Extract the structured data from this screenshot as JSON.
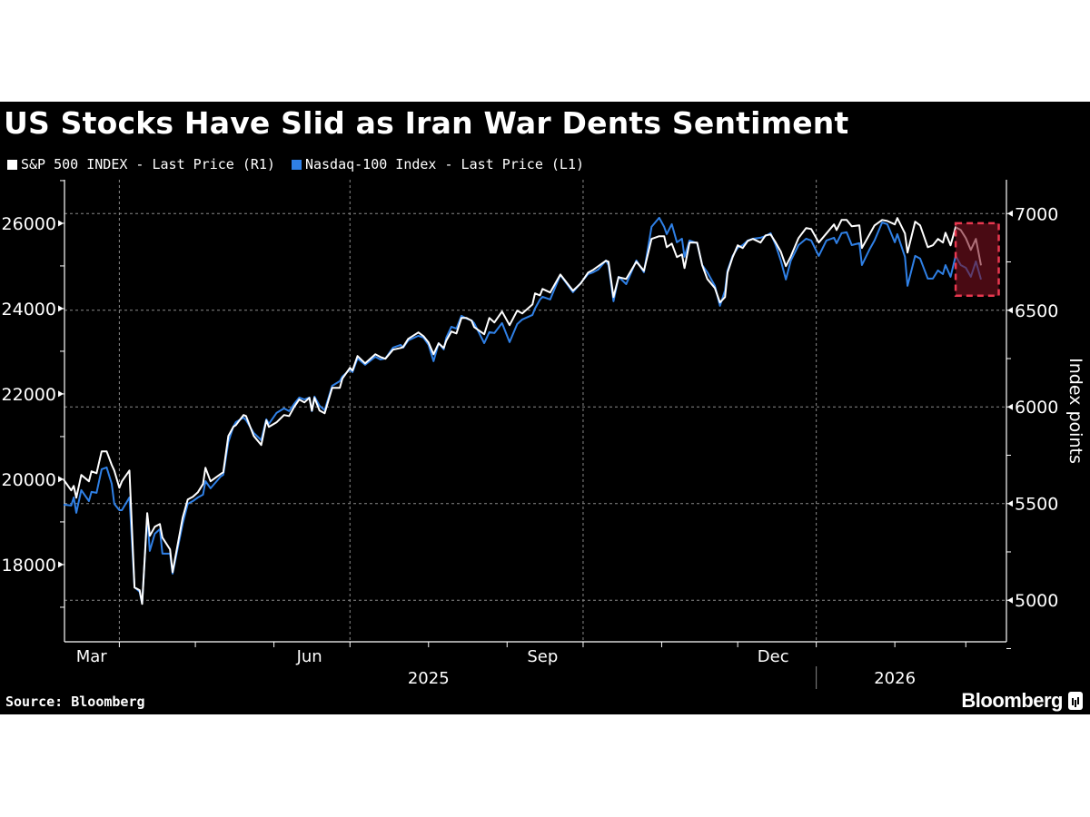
{
  "title": "US Stocks Have Slid as Iran War Dents Sentiment",
  "legend": [
    {
      "label": "S&P 500 INDEX - Last Price (R1)",
      "color": "#ffffff"
    },
    {
      "label": "Nasdaq-100 Index - Last Price (L1)",
      "color": "#2f80e6"
    }
  ],
  "source": "Source: Bloomberg",
  "brand": "Bloomberg",
  "chart_data": {
    "type": "line",
    "title": "US Stocks Have Slid as Iran War Dents Sentiment",
    "background": "#000000",
    "grid": "dotted, horizontal at right-axis ticks, vertical at quarter starts",
    "legend_position": "top-left",
    "xlim": [
      "2025-03-10",
      "2026-03-07"
    ],
    "x_ticks": [
      {
        "label": "Mar",
        "date": "2025-03-21"
      },
      {
        "label": "Jun",
        "date": "2025-06-15"
      },
      {
        "label": "Sep",
        "date": "2025-09-15"
      },
      {
        "label": "Dec",
        "date": "2025-12-15"
      }
    ],
    "year_labels": [
      {
        "label": "2025",
        "date": "2025-08-01"
      },
      {
        "label": "2026",
        "date": "2026-02-01"
      }
    ],
    "left_axis": {
      "ylim": [
        16190,
        27020
      ],
      "ticks": [
        "18000",
        "20000",
        "22000",
        "24000",
        "26000"
      ],
      "label": ""
    },
    "right_axis": {
      "ylim": [
        4785,
        7175
      ],
      "ticks": [
        "5000",
        "5500",
        "6000",
        "6500",
        "7000"
      ],
      "label": "Index points"
    },
    "highlight": {
      "start": "2026-02-25",
      "end": "2026-03-14",
      "top": 6950,
      "bottom": 6575,
      "fill": "#7a1020",
      "border": "#e8384f"
    },
    "dates": [
      "2025-03-10",
      "2025-03-13",
      "2025-03-14",
      "2025-03-15",
      "2025-03-17",
      "2025-03-20",
      "2025-03-21",
      "2025-03-23",
      "2025-03-25",
      "2025-03-27",
      "2025-03-29",
      "2025-03-30",
      "2025-04-01",
      "2025-04-02",
      "2025-04-05",
      "2025-04-07",
      "2025-04-09",
      "2025-04-10",
      "2025-04-12",
      "2025-04-13",
      "2025-04-15",
      "2025-04-17",
      "2025-04-18",
      "2025-04-21",
      "2025-04-22",
      "2025-04-26",
      "2025-04-28",
      "2025-04-30",
      "2025-05-02",
      "2025-05-04",
      "2025-05-05",
      "2025-05-07",
      "2025-05-11",
      "2025-05-12",
      "2025-05-14",
      "2025-05-16",
      "2025-05-17",
      "2025-05-20",
      "2025-05-21",
      "2025-05-24",
      "2025-05-27",
      "2025-05-29",
      "2025-05-30",
      "2025-06-02",
      "2025-06-05",
      "2025-06-07",
      "2025-06-09",
      "2025-06-11",
      "2025-06-13",
      "2025-06-15",
      "2025-06-16",
      "2025-06-17",
      "2025-06-19",
      "2025-06-21",
      "2025-06-24",
      "2025-06-27",
      "2025-06-28",
      "2025-07-01",
      "2025-07-02",
      "2025-07-04",
      "2025-07-07",
      "2025-07-11",
      "2025-07-13",
      "2025-07-15",
      "2025-07-18",
      "2025-07-21",
      "2025-07-22",
      "2025-07-24",
      "2025-07-28",
      "2025-07-30",
      "2025-08-01",
      "2025-08-03",
      "2025-08-05",
      "2025-08-07",
      "2025-08-08",
      "2025-08-10",
      "2025-08-12",
      "2025-08-14",
      "2025-08-16",
      "2025-08-18",
      "2025-08-19",
      "2025-08-23",
      "2025-08-25",
      "2025-08-27",
      "2025-08-30",
      "2025-09-02",
      "2025-09-05",
      "2025-09-07",
      "2025-09-11",
      "2025-09-12",
      "2025-09-14",
      "2025-09-15",
      "2025-09-18",
      "2025-09-22",
      "2025-09-27",
      "2025-09-30",
      "2025-10-03",
      "2025-10-05",
      "2025-10-07",
      "2025-10-10",
      "2025-10-11",
      "2025-10-13",
      "2025-10-15",
      "2025-10-18",
      "2025-10-22",
      "2025-10-25",
      "2025-10-28",
      "2025-10-31",
      "2025-11-02",
      "2025-11-03",
      "2025-11-05",
      "2025-11-07",
      "2025-11-09",
      "2025-11-10",
      "2025-11-12",
      "2025-11-15",
      "2025-11-17",
      "2025-11-19",
      "2025-11-22",
      "2025-11-24",
      "2025-11-26",
      "2025-11-27",
      "2025-11-29",
      "2025-12-01",
      "2025-12-03",
      "2025-12-05",
      "2025-12-07",
      "2025-12-10",
      "2025-12-12",
      "2025-12-14",
      "2025-12-16",
      "2025-12-18",
      "2025-12-20",
      "2025-12-22",
      "2025-12-25",
      "2025-12-28",
      "2025-12-30",
      "2026-01-02",
      "2026-01-05",
      "2026-01-08",
      "2026-01-09",
      "2026-01-11",
      "2026-01-13",
      "2026-01-15",
      "2026-01-18",
      "2026-01-19",
      "2026-01-22",
      "2026-01-24",
      "2026-01-27",
      "2026-01-29",
      "2026-02-01",
      "2026-02-02",
      "2026-02-05",
      "2026-02-06",
      "2026-02-09",
      "2026-02-11",
      "2026-02-14",
      "2026-02-16",
      "2026-02-18",
      "2026-02-20",
      "2026-02-21",
      "2026-02-23",
      "2026-02-25",
      "2026-02-27",
      "2026-03-01",
      "2026-03-03",
      "2026-03-05",
      "2026-03-07"
    ],
    "series": [
      {
        "name": "S&P 500 INDEX - Last Price (R1)",
        "axis": "right",
        "color": "#ffffff",
        "values": [
          5624,
          5568,
          5591,
          5530,
          5648,
          5615,
          5667,
          5657,
          5770,
          5770,
          5700,
          5671,
          5582,
          5615,
          5671,
          5066,
          5052,
          4981,
          5451,
          5333,
          5380,
          5394,
          5324,
          5263,
          5145,
          5427,
          5521,
          5535,
          5559,
          5601,
          5685,
          5615,
          5653,
          5662,
          5850,
          5897,
          5906,
          5958,
          5953,
          5850,
          5803,
          5930,
          5897,
          5920,
          5958,
          5953,
          6000,
          6038,
          6023,
          6047,
          5981,
          6047,
          5981,
          5967,
          6099,
          6099,
          6146,
          6202,
          6188,
          6263,
          6225,
          6272,
          6258,
          6249,
          6296,
          6305,
          6310,
          6352,
          6385,
          6366,
          6333,
          6272,
          6329,
          6305,
          6343,
          6390,
          6380,
          6460,
          6460,
          6446,
          6413,
          6376,
          6460,
          6437,
          6493,
          6423,
          6498,
          6484,
          6530,
          6587,
          6577,
          6610,
          6592,
          6685,
          6601,
          6638,
          6695,
          6709,
          6728,
          6756,
          6751,
          6568,
          6671,
          6662,
          6751,
          6704,
          6869,
          6883,
          6883,
          6826,
          6845,
          6775,
          6789,
          6718,
          6850,
          6850,
          6732,
          6662,
          6615,
          6540,
          6568,
          6695,
          6775,
          6836,
          6822,
          6859,
          6869,
          6850,
          6887,
          6892,
          6850,
          6803,
          6728,
          6779,
          6873,
          6925,
          6920,
          6850,
          6897,
          6944,
          6915,
          6967,
          6967,
          6934,
          6939,
          6822,
          6892,
          6939,
          6967,
          6962,
          6944,
          6977,
          6897,
          6798,
          6958,
          6939,
          6826,
          6836,
          6869,
          6850,
          6901,
          6836,
          6930,
          6915,
          6873,
          6812,
          6869,
          6732
        ]
      },
      {
        "name": "Nasdaq-100 Index - Last Price (L1)",
        "axis": "left",
        "color": "#2f80e6",
        "values": [
          19404,
          19383,
          19574,
          19213,
          19745,
          19489,
          19702,
          19681,
          20234,
          20277,
          19894,
          19425,
          19276,
          19276,
          19574,
          17468,
          17362,
          17085,
          19149,
          18319,
          18723,
          18830,
          18255,
          18255,
          17787,
          18957,
          19425,
          19489,
          19574,
          19638,
          19957,
          19787,
          20064,
          20106,
          20872,
          21234,
          21340,
          21447,
          21383,
          21085,
          20915,
          21404,
          21298,
          21553,
          21660,
          21596,
          21766,
          21915,
          21872,
          21915,
          21596,
          21936,
          21723,
          21617,
          22191,
          22298,
          22404,
          22574,
          22511,
          22830,
          22681,
          22872,
          22808,
          22830,
          23085,
          23149,
          23085,
          23255,
          23362,
          23319,
          23149,
          22766,
          23191,
          23043,
          23319,
          23574,
          23532,
          23830,
          23766,
          23723,
          23660,
          23191,
          23447,
          23426,
          23660,
          23213,
          23638,
          23745,
          23851,
          24000,
          24213,
          24277,
          24213,
          24787,
          24383,
          24596,
          24809,
          24851,
          24915,
          25128,
          25021,
          24170,
          24745,
          24574,
          25128,
          24851,
          25915,
          26128,
          25915,
          25745,
          25979,
          25553,
          25638,
          25213,
          25596,
          25532,
          25021,
          24851,
          24532,
          24064,
          24426,
          24894,
          25234,
          25426,
          25489,
          25596,
          25638,
          25660,
          25702,
          25766,
          25489,
          25128,
          24681,
          25128,
          25489,
          25638,
          25596,
          25234,
          25596,
          25660,
          25532,
          25766,
          25787,
          25489,
          25532,
          25021,
          25383,
          25596,
          26021,
          25979,
          25553,
          25745,
          25213,
          24532,
          25234,
          25170,
          24702,
          24702,
          24894,
          24809,
          25021,
          24745,
          25234,
          25021,
          24957,
          24745,
          25106,
          24681
        ]
      }
    ]
  }
}
